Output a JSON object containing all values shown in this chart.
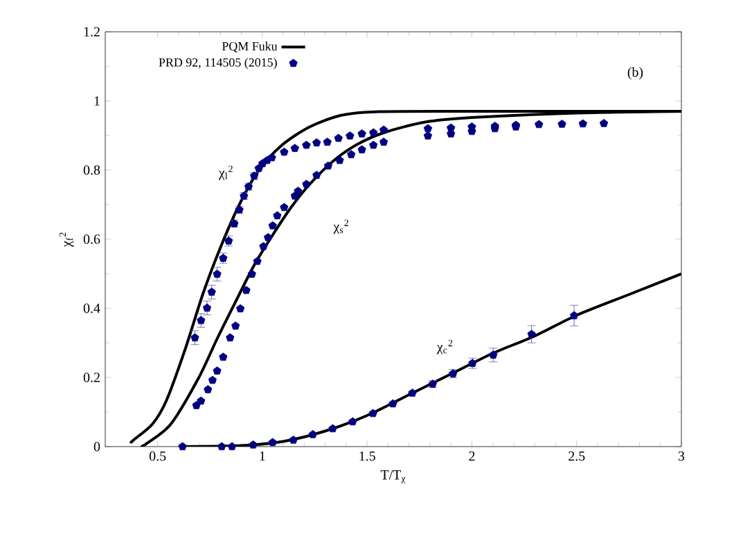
{
  "chart_data": {
    "type": "line",
    "xlabel": "T/T$_{χ}$",
    "ylabel": "χ$_{f}$$^{2}$",
    "xlim": [
      0.25,
      3
    ],
    "ylim": [
      0,
      1.2
    ],
    "xticks": [
      0.5,
      1,
      1.5,
      2,
      2.5,
      3
    ],
    "yticks": [
      0,
      0.2,
      0.4,
      0.6,
      0.8,
      1,
      1.2
    ],
    "legend": "top left",
    "grid": false,
    "series": [
      {
        "name": "PQM Fuku",
        "color": "#000000",
        "x": [
          0.37,
          0.387,
          0.475,
          0.541,
          0.63,
          0.718,
          0.806,
          0.894,
          0.983,
          1.093,
          1.226,
          1.38,
          1.557,
          2.0,
          2.5,
          3.0
        ],
        "values": [
          0.01,
          0.02,
          0.065,
          0.132,
          0.279,
          0.445,
          0.585,
          0.705,
          0.799,
          0.872,
          0.925,
          0.959,
          0.969,
          0.97,
          0.97,
          0.97
        ]
      },
      {
        "color": "#000000",
        "x": [
          0.42,
          0.45,
          0.563,
          0.696,
          0.784,
          0.872,
          0.961,
          1.049,
          1.137,
          1.226,
          1.336,
          1.446,
          1.579,
          1.778,
          1.998,
          2.5,
          3.0
        ],
        "values": [
          0.0,
          0.01,
          0.065,
          0.199,
          0.312,
          0.419,
          0.525,
          0.612,
          0.692,
          0.759,
          0.825,
          0.872,
          0.908,
          0.939,
          0.952,
          0.965,
          0.97
        ]
      },
      {
        "color": "#000000",
        "x": [
          0.6,
          0.9,
          1.1,
          1.3,
          1.5,
          1.7,
          1.9,
          2.1,
          2.3,
          2.5,
          2.75,
          3.0
        ],
        "values": [
          0.0,
          0.003,
          0.015,
          0.045,
          0.09,
          0.15,
          0.21,
          0.27,
          0.32,
          0.38,
          0.44,
          0.5
        ]
      },
      {
        "name": "PRD 92, 114505 (2015)",
        "type": "scatter",
        "color": "#000080",
        "x": [
          0.678,
          0.707,
          0.736,
          0.758,
          0.784,
          0.813,
          0.839,
          0.866,
          0.89,
          0.912,
          0.934,
          0.961,
          0.983,
          1.001,
          1.023,
          1.045,
          1.104,
          1.155,
          1.21,
          1.259,
          1.31,
          1.363,
          1.418,
          1.475,
          1.53,
          1.579,
          1.79,
          1.9,
          2.0,
          2.11,
          2.21,
          2.32,
          2.43,
          2.53,
          2.63
        ],
        "values": [
          0.315,
          0.365,
          0.401,
          0.447,
          0.499,
          0.545,
          0.595,
          0.645,
          0.685,
          0.725,
          0.752,
          0.783,
          0.805,
          0.819,
          0.828,
          0.836,
          0.852,
          0.863,
          0.872,
          0.879,
          0.881,
          0.892,
          0.899,
          0.905,
          0.908,
          0.916,
          0.92,
          0.922,
          0.925,
          0.927,
          0.93,
          0.932,
          0.933,
          0.934,
          0.935
        ],
        "errors": [
          0.02,
          0.02,
          0.02,
          0.02,
          0.02,
          0.015,
          0.015,
          0.01,
          0.01,
          0.01,
          0.01,
          0.01,
          null,
          null,
          null,
          null,
          null,
          null,
          null,
          null,
          null,
          null,
          null,
          null,
          null,
          null,
          null,
          null,
          null,
          null,
          null,
          null,
          null,
          null,
          null
        ]
      },
      {
        "type": "scatter",
        "color": "#000080",
        "x": [
          0.685,
          0.707,
          0.74,
          0.762,
          0.784,
          0.813,
          0.846,
          0.872,
          0.895,
          0.923,
          0.95,
          0.976,
          1.005,
          1.027,
          1.049,
          1.071,
          1.104,
          1.155,
          1.17,
          1.21,
          1.259,
          1.314,
          1.369,
          1.424,
          1.475,
          1.53,
          1.579,
          1.79,
          1.9,
          2.0,
          2.11,
          2.21
        ],
        "values": [
          0.119,
          0.132,
          0.165,
          0.192,
          0.219,
          0.259,
          0.315,
          0.349,
          0.399,
          0.452,
          0.499,
          0.536,
          0.579,
          0.605,
          0.639,
          0.668,
          0.692,
          0.725,
          0.739,
          0.759,
          0.785,
          0.812,
          0.828,
          0.845,
          0.859,
          0.872,
          0.881,
          0.899,
          0.905,
          0.912,
          0.92,
          0.925
        ]
      },
      {
        "type": "scatter",
        "color": "#000080",
        "x": [
          0.619,
          0.806,
          0.855,
          0.956,
          1.049,
          1.148,
          1.241,
          1.336,
          1.431,
          1.528,
          1.623,
          1.716,
          1.813,
          1.91,
          2.003,
          2.102,
          2.285,
          2.488
        ],
        "values": [
          0.0,
          0.0,
          0.0,
          0.005,
          0.012,
          0.019,
          0.035,
          0.052,
          0.072,
          0.096,
          0.124,
          0.155,
          0.181,
          0.211,
          0.241,
          0.265,
          0.325,
          0.379
        ],
        "errors": [
          null,
          null,
          null,
          null,
          null,
          null,
          null,
          null,
          null,
          null,
          null,
          null,
          0.01,
          0.012,
          0.015,
          0.02,
          0.025,
          0.03
        ]
      }
    ],
    "annotations": [
      "χ$_{l}$$^{2}$",
      "χ$_{s}$$^{2}$",
      "χ$_{c}$$^{2}$",
      "(b)"
    ]
  }
}
